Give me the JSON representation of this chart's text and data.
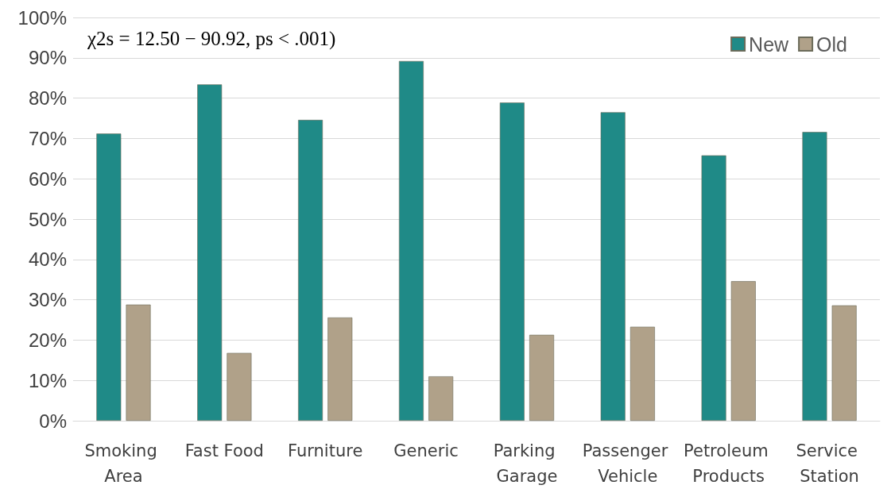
{
  "chart_data": {
    "type": "bar",
    "categories": [
      "Smoking Area",
      "Fast Food",
      "Furniture",
      "Generic",
      "Parking Garage",
      "Passenger Vehicle",
      "Petroleum Products",
      "Service Station"
    ],
    "series": [
      {
        "name": "New",
        "color": "#1f8a87",
        "values": [
          71.2,
          83.4,
          74.6,
          89.2,
          78.9,
          76.5,
          65.8,
          71.6
        ]
      },
      {
        "name": "Old",
        "color": "#b0a189",
        "values": [
          28.8,
          16.8,
          25.6,
          11.0,
          21.3,
          23.3,
          34.6,
          28.6
        ]
      }
    ],
    "ylim": [
      0,
      100
    ],
    "yticks": [
      {
        "value": 0,
        "label": "0%"
      },
      {
        "value": 10,
        "label": "10%"
      },
      {
        "value": 20,
        "label": "20%"
      },
      {
        "value": 30,
        "label": "30%"
      },
      {
        "value": 40,
        "label": "40%"
      },
      {
        "value": 50,
        "label": "50%"
      },
      {
        "value": 60,
        "label": "60%"
      },
      {
        "value": 70,
        "label": "70%"
      },
      {
        "value": 80,
        "label": "80%"
      },
      {
        "value": 90,
        "label": "90%"
      },
      {
        "value": 100,
        "label": "100%"
      }
    ],
    "grid": "y",
    "legend": "top right",
    "annotations": [
      "χ2s = 12.50 − 90.92, ps < .001)"
    ]
  }
}
